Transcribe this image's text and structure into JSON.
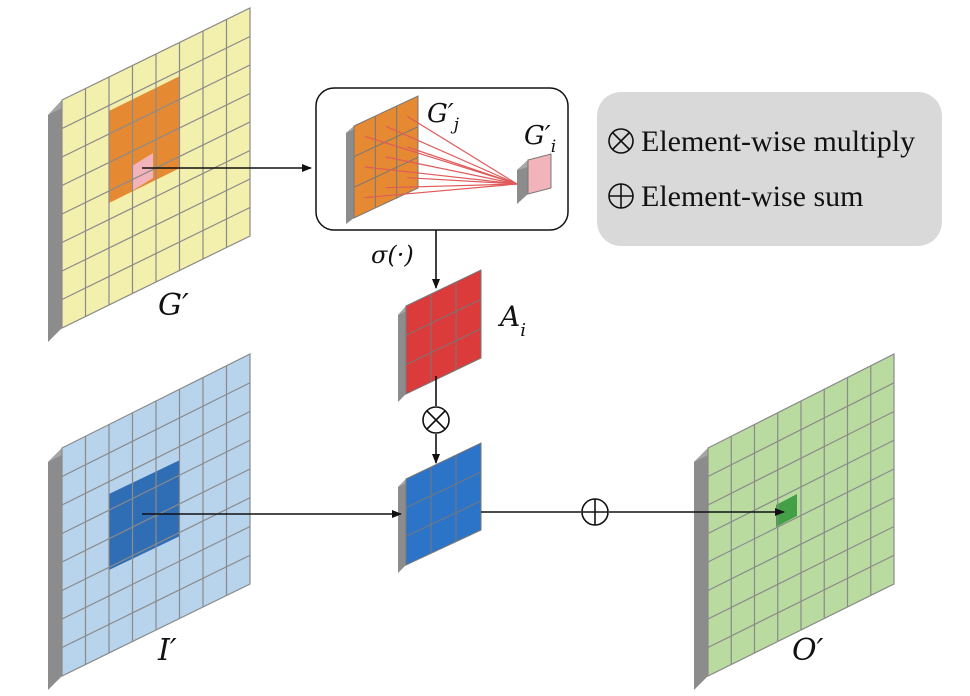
{
  "labels": {
    "g_prime": "G′",
    "i_prime": "I′",
    "o_prime": "O′",
    "a_i": "A",
    "a_i_sub": "i",
    "sigma": "σ(·)",
    "g_j": "G′",
    "g_j_sub": "j",
    "g_i": "G′",
    "g_i_sub": "i"
  },
  "legend": {
    "multiply_symbol": "⊗",
    "multiply_label": "Element-wise multiply",
    "sum_symbol": "⊕",
    "sum_label": "Element-wise sum"
  },
  "colors": {
    "yellow_grid": "#f3efad",
    "orange_region": "#e58a33",
    "pink_cell": "#f2b3ba",
    "blue_grid": "#b8d3ec",
    "blue_region": "#2f6db5",
    "green_grid": "#b9dba0",
    "green_cell": "#43a047",
    "red_block": "#dc3b3b",
    "blue_block": "#2c74c8",
    "side_gray": "#8c8c8c",
    "legend_bg": "#d9d9d9",
    "red_lines": "#e05a5a"
  }
}
